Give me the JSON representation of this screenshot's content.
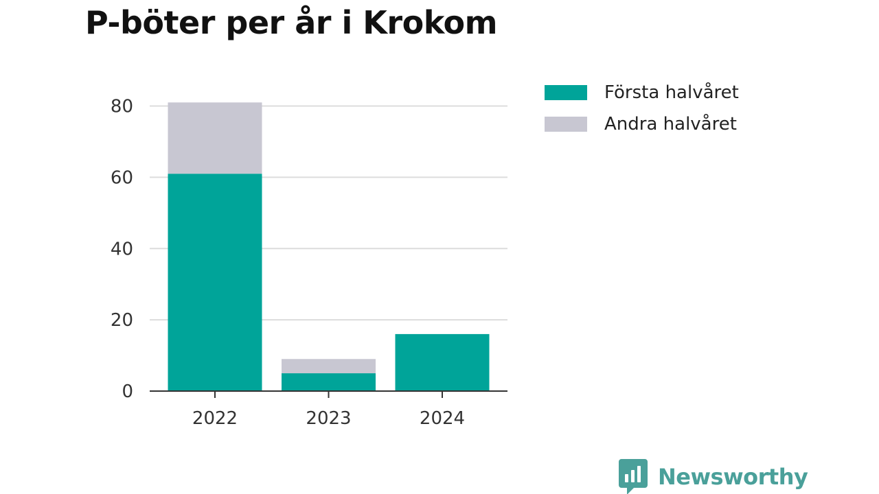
{
  "chart_data": {
    "type": "bar",
    "stacked": true,
    "title": "P-böter per år i Krokom",
    "categories": [
      "2022",
      "2023",
      "2024"
    ],
    "series": [
      {
        "name": "Första halvåret",
        "values": [
          61,
          5,
          16
        ],
        "color": "#00a499"
      },
      {
        "name": "Andra halvåret",
        "values": [
          20,
          4,
          0
        ],
        "color": "#c8c7d2"
      }
    ],
    "ylim": [
      0,
      80
    ],
    "yticks": [
      0,
      20,
      40,
      60,
      80
    ],
    "grid": true,
    "legend_position": "top-right"
  },
  "brand": {
    "name": "Newsworthy",
    "color": "#4aa09a",
    "icon": "bar-chart-speech-bubble-icon"
  }
}
